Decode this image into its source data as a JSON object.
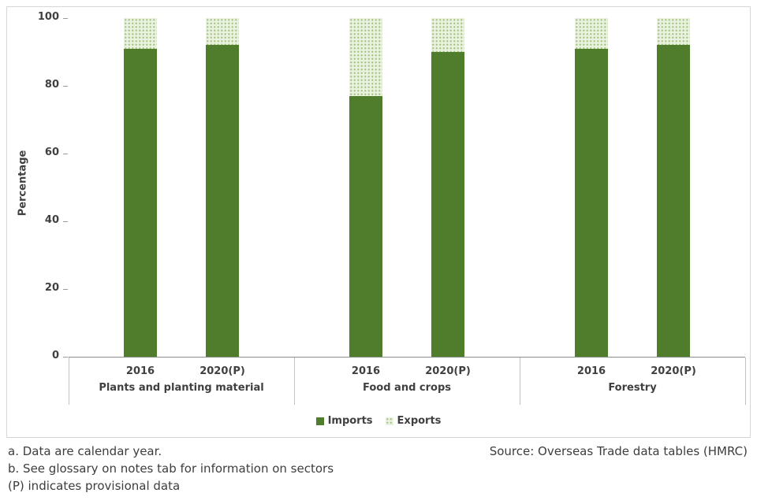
{
  "chart_data": {
    "type": "bar",
    "stacked": true,
    "title": "",
    "ylabel": "Percentage",
    "xlabel": "",
    "ylim": [
      0,
      100
    ],
    "yticks": [
      0,
      20,
      40,
      60,
      80,
      100
    ],
    "grid": false,
    "legend_position": "bottom",
    "groups": [
      "Plants and planting material",
      "Food and crops",
      "Forestry"
    ],
    "categories_per_group": 2,
    "categories": [
      "2016",
      "2020(P)",
      "2016",
      "2020(P)",
      "2016",
      "2020(P)"
    ],
    "series": [
      {
        "name": "Imports",
        "pattern": "solid",
        "color": "#507d2b",
        "values": [
          91,
          92,
          77,
          90,
          91,
          92
        ]
      },
      {
        "name": "Exports",
        "pattern": "dots",
        "color": "#e9f1df",
        "pattern_color": "#a3c27e",
        "values": [
          9,
          8,
          23,
          10,
          9,
          8
        ]
      }
    ]
  },
  "axis_colors": {
    "axis_line": "#8c8c8c",
    "separator": "#c3c3c3",
    "text": "#404040"
  },
  "notes": {
    "note_a": "a. Data are calendar year.",
    "source": "Source: Overseas Trade data tables (HMRC)",
    "note_b": "b. See glossary on notes tab for information on sectors",
    "note_p": "(P) indicates provisional data"
  }
}
